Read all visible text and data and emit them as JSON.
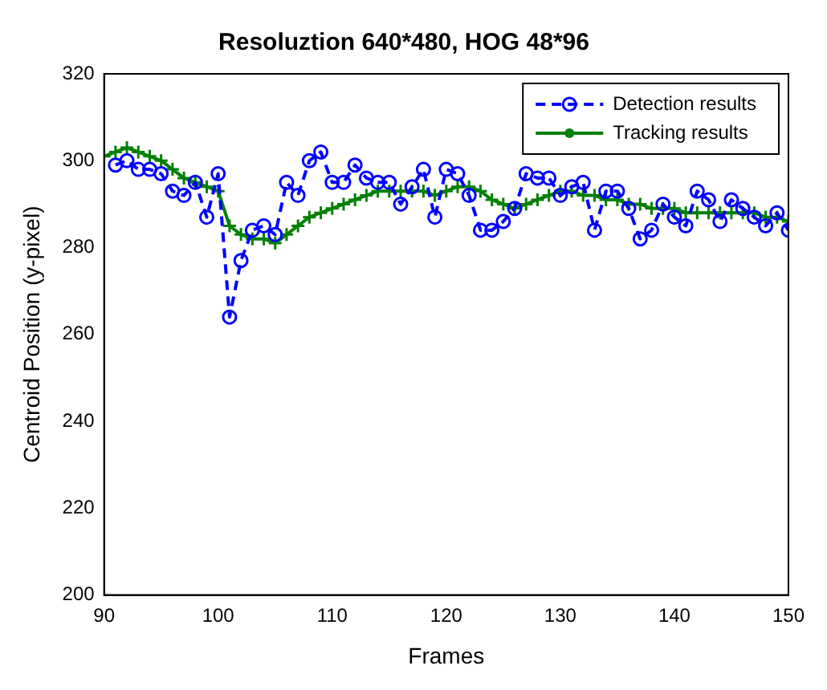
{
  "chart_data": {
    "type": "line",
    "title": "Resoluztion 640*480, HOG 48*96",
    "xlabel": "Frames",
    "ylabel": "Centroid Position (y-pixel)",
    "xlim": [
      90,
      150
    ],
    "xticks": [
      90,
      100,
      110,
      120,
      130,
      140,
      150
    ],
    "ylim": [
      200,
      320
    ],
    "yticks": [
      200,
      220,
      240,
      260,
      280,
      300,
      320
    ],
    "grid": false,
    "legend": "top right",
    "series": [
      {
        "name": "Detection results",
        "color": "#0000ff",
        "marker": "circle",
        "line_style": "dashed",
        "x": [
          91,
          92,
          93,
          94,
          95,
          96,
          97,
          98,
          99,
          100,
          101,
          102,
          103,
          104,
          105,
          106,
          107,
          108,
          109,
          110,
          111,
          112,
          113,
          114,
          115,
          116,
          117,
          118,
          119,
          120,
          121,
          122,
          123,
          124,
          125,
          126,
          127,
          128,
          129,
          130,
          131,
          132,
          133,
          134,
          135,
          136,
          137,
          138,
          139,
          140,
          141,
          142,
          143,
          144,
          145,
          146,
          147,
          148,
          149,
          150
        ],
        "values": [
          299,
          300,
          298,
          298,
          297,
          293,
          292,
          295,
          287,
          297,
          264,
          277,
          284,
          285,
          283,
          295,
          292,
          300,
          302,
          295,
          295,
          299,
          296,
          295,
          295,
          290,
          294,
          298,
          287,
          298,
          297,
          292,
          284,
          284,
          286,
          289,
          297,
          296,
          296,
          292,
          294,
          295,
          284,
          293,
          293,
          289,
          282,
          284,
          290,
          287,
          285,
          293,
          291,
          286,
          291,
          289,
          287,
          285,
          288,
          284
        ]
      },
      {
        "name": "Tracking results",
        "color": "#008000",
        "marker": "cross",
        "line_style": "solid",
        "x": [
          90,
          91,
          92,
          93,
          94,
          95,
          96,
          97,
          98,
          99,
          100,
          101,
          102,
          103,
          104,
          105,
          106,
          107,
          108,
          109,
          110,
          111,
          112,
          113,
          114,
          115,
          116,
          117,
          118,
          119,
          120,
          121,
          122,
          123,
          124,
          125,
          126,
          127,
          128,
          129,
          130,
          131,
          132,
          133,
          134,
          135,
          136,
          137,
          138,
          139,
          140,
          141,
          142,
          143,
          144,
          145,
          146,
          147,
          148,
          149,
          150
        ],
        "values": [
          301,
          302,
          303,
          302,
          301,
          300,
          298,
          296,
          295,
          294,
          293,
          285,
          283,
          282,
          282,
          281,
          283,
          285,
          287,
          288,
          289,
          290,
          291,
          292,
          293,
          293,
          293,
          293,
          293,
          292,
          293,
          294,
          294,
          293,
          291,
          290,
          289,
          290,
          291,
          292,
          293,
          293,
          292,
          292,
          291,
          291,
          290,
          290,
          289,
          289,
          289,
          288,
          288,
          288,
          288,
          288,
          288,
          288,
          287,
          287,
          286
        ]
      }
    ]
  }
}
